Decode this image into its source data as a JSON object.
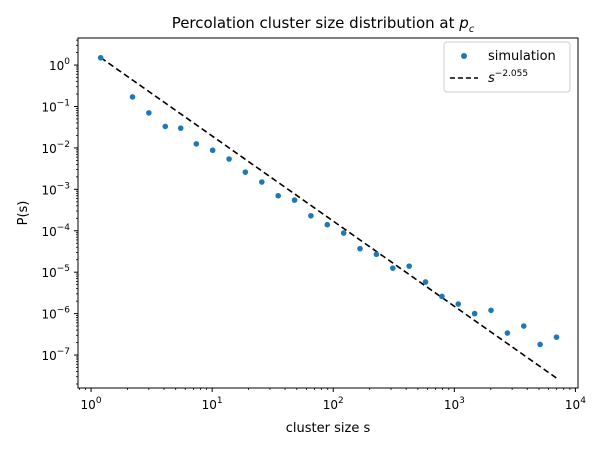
{
  "chart_data": {
    "type": "scatter",
    "title": "Percolation cluster size distribution at ",
    "title_math": "p",
    "title_math_sub": "c",
    "xlabel": "cluster size s",
    "ylabel": "P(s)",
    "xscale": "log",
    "yscale": "log",
    "xlim": [
      0.78,
      10500
    ],
    "ylim": [
      1.6e-08,
      4.5
    ],
    "grid": false,
    "legend_placement": "top-right",
    "x_ticks": [
      {
        "value": 1,
        "base": "10",
        "exp": "0"
      },
      {
        "value": 10,
        "base": "10",
        "exp": "1"
      },
      {
        "value": 100,
        "base": "10",
        "exp": "2"
      },
      {
        "value": 1000,
        "base": "10",
        "exp": "3"
      },
      {
        "value": 10000,
        "base": "10",
        "exp": "4"
      }
    ],
    "y_ticks": [
      {
        "value": 1,
        "base": "10",
        "exp": "0"
      },
      {
        "value": 0.1,
        "base": "10",
        "exp": "−1"
      },
      {
        "value": 0.01,
        "base": "10",
        "exp": "−2"
      },
      {
        "value": 0.001,
        "base": "10",
        "exp": "−3"
      },
      {
        "value": 0.0001,
        "base": "10",
        "exp": "−4"
      },
      {
        "value": 1e-05,
        "base": "10",
        "exp": "−5"
      },
      {
        "value": 1e-06,
        "base": "10",
        "exp": "−6"
      },
      {
        "value": 1e-07,
        "base": "10",
        "exp": "−7"
      }
    ],
    "series": [
      {
        "name": "simulation",
        "kind": "scatter",
        "color": "#1f77b4",
        "x": [
          1.2,
          2.2,
          3.0,
          4.1,
          5.5,
          7.4,
          10.1,
          13.8,
          18.8,
          25.7,
          35.1,
          47.9,
          65.4,
          89.3,
          121.9,
          166.4,
          227.2,
          310.2,
          423.5,
          578.2,
          789.3,
          1077.6,
          1471.2,
          2008.4,
          2741.9,
          3743.2,
          5110.2,
          6976.4
        ],
        "y": [
          1.5,
          0.17,
          0.07,
          0.033,
          0.03,
          0.0125,
          0.0088,
          0.0054,
          0.0026,
          0.0015,
          0.0007,
          0.00055,
          0.00023,
          0.00014,
          8.8e-05,
          3.7e-05,
          2.7e-05,
          1.25e-05,
          1.4e-05,
          5.8e-06,
          2.6e-06,
          1.7e-06,
          1e-06,
          1.2e-06,
          3.4e-07,
          5e-07,
          1.8e-07,
          2.7e-07
        ]
      },
      {
        "name_base": "s",
        "name_exp": "−2.055",
        "kind": "line",
        "style": "dashed",
        "color": "#000000",
        "exponent": -2.055,
        "amplitude": 2.2,
        "x_range": [
          1.2,
          6976.4
        ]
      }
    ]
  }
}
